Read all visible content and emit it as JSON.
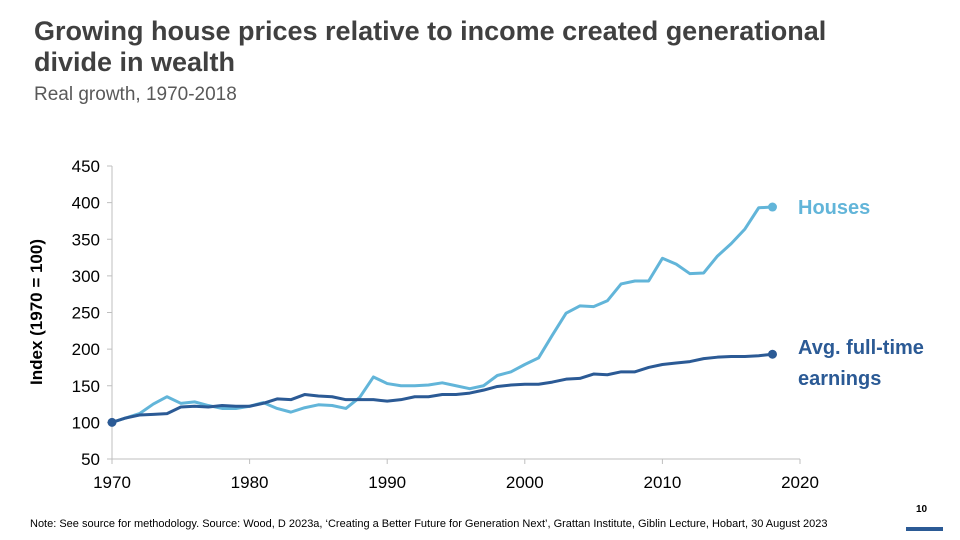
{
  "title": "Growing house prices relative to income created generational divide in wealth",
  "subtitle": "Real growth, 1970-2018",
  "note": "Note: See source for methodology. Source: Wood, D 2023a, ‘Creating a Better Future for Generation Next’, Grattan Institute, Giblin Lecture, Hobart, 30 August 2023",
  "page_number": "10",
  "chart_data": {
    "type": "line",
    "title": "",
    "xlabel": "",
    "ylabel": "Index (1970 = 100)",
    "xlim": [
      1970,
      2020
    ],
    "ylim": [
      50,
      450
    ],
    "xticks": [
      1970,
      1980,
      1990,
      2000,
      2010,
      2020
    ],
    "yticks": [
      50,
      100,
      150,
      200,
      250,
      300,
      350,
      400,
      450
    ],
    "grid": false,
    "legend": "direct labels at line ends",
    "x": [
      1970,
      1971,
      1972,
      1973,
      1974,
      1975,
      1976,
      1977,
      1978,
      1979,
      1980,
      1981,
      1982,
      1983,
      1984,
      1985,
      1986,
      1987,
      1988,
      1989,
      1990,
      1991,
      1992,
      1993,
      1994,
      1995,
      1996,
      1997,
      1998,
      1999,
      2000,
      2001,
      2002,
      2003,
      2004,
      2005,
      2006,
      2007,
      2008,
      2009,
      2010,
      2011,
      2012,
      2013,
      2014,
      2015,
      2016,
      2017,
      2018
    ],
    "series": [
      {
        "name": "Houses",
        "color": "#62b5d9",
        "values": [
          100,
          106,
          112,
          125,
          135,
          126,
          128,
          123,
          119,
          119,
          122,
          127,
          119,
          114,
          120,
          124,
          123,
          119,
          134,
          162,
          153,
          150,
          150,
          151,
          154,
          150,
          146,
          150,
          164,
          169,
          179,
          188,
          219,
          249,
          259,
          258,
          266,
          289,
          293,
          293,
          324,
          316,
          303,
          304,
          327,
          344,
          364,
          393,
          394
        ]
      },
      {
        "name": "Avg. full-time earnings",
        "color": "#2b5a95",
        "values": [
          100,
          106,
          110,
          111,
          112,
          121,
          122,
          121,
          123,
          122,
          122,
          126,
          132,
          131,
          138,
          136,
          135,
          131,
          131,
          131,
          129,
          131,
          135,
          135,
          138,
          138,
          140,
          144,
          149,
          151,
          152,
          152,
          155,
          159,
          160,
          166,
          165,
          169,
          169,
          175,
          179,
          181,
          183,
          187,
          189,
          190,
          190,
          191,
          193
        ]
      }
    ]
  }
}
